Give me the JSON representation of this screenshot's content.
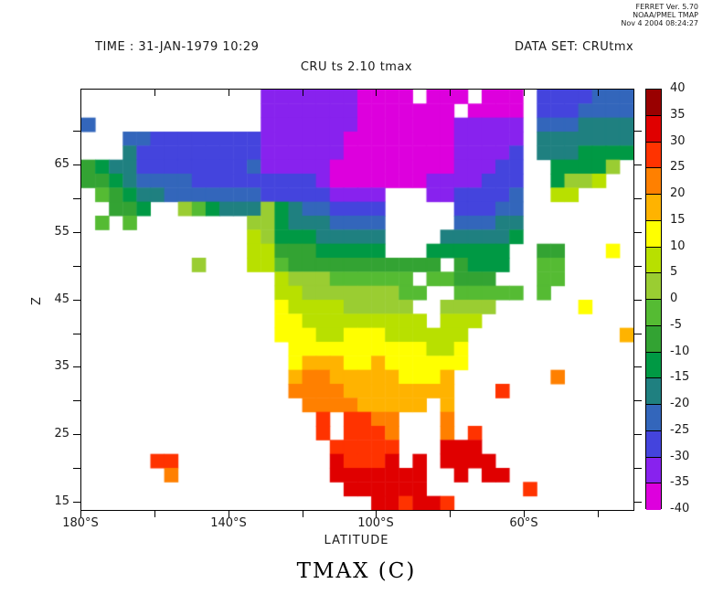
{
  "header": {
    "stamp_lines": [
      "FERRET Ver. 5.70",
      "NOAA/PMEL TMAP",
      "Nov  4 2004 08:24:27"
    ],
    "time_label": "TIME : 31-JAN-1979 10:29",
    "dataset_label": "DATA SET: CRUtmx"
  },
  "title": "CRU ts 2.10 tmax",
  "footer_label": "TMAX (C)",
  "axes": {
    "y_label": "Z",
    "x_label": "LATITUDE",
    "x_major": [
      {
        "label": "180°S",
        "value": 180
      },
      {
        "label": "140°S",
        "value": 140
      },
      {
        "label": "100°S",
        "value": 100
      },
      {
        "label": "60°S",
        "value": 60
      }
    ],
    "x_minor_values": [
      160,
      120,
      80,
      40
    ],
    "y_major": [
      {
        "label": "65",
        "value": 65
      },
      {
        "label": "55",
        "value": 55
      },
      {
        "label": "45",
        "value": 45
      },
      {
        "label": "35",
        "value": 35
      },
      {
        "label": "25",
        "value": 25
      },
      {
        "label": "15",
        "value": 15
      }
    ],
    "y_minor_values": [
      70,
      60,
      50,
      40,
      30,
      20
    ]
  },
  "chart_data": {
    "type": "heatmap",
    "title": "CRU ts 2.10 tmax",
    "variable": "TMAX (C)",
    "xlabel": "LATITUDE",
    "ylabel": "Z",
    "x_axis_deg_west_range": [
      180,
      30
    ],
    "y_axis_deg_north_range": [
      14,
      77
    ],
    "colorbar": {
      "levels": [
        -40,
        -35,
        -30,
        -25,
        -20,
        -15,
        -10,
        -5,
        0,
        5,
        10,
        15,
        20,
        25,
        30,
        35,
        40
      ],
      "colors": [
        "#dd00dd",
        "#8822ee",
        "#4444dd",
        "#3366bb",
        "#1f8080",
        "#009944",
        "#33a333",
        "#55bb33",
        "#9acd32",
        "#b8e000",
        "#ffff00",
        "#ffb300",
        "#ff8000",
        "#ff3300",
        "#e00000",
        "#990000"
      ]
    },
    "grid_note": "40x30 cells over plot area; char '.' = ocean/no data; hex digit = color bin index (0 = -40..-35 C ... F = 35..40 C); bin midpoint temp = -37.5 + 5*index",
    "grid_rows": [
      ".............11111110000.000.000.2222333",
      ".............11111110000000.0000.2223333",
      "3............1111111000000011111.3334444",
      "...33222222221111110000000011111.4444444",
      "...42222222221111110000000011112.4445555",
      "65442222222231111100000000011122..55558.",
      "66543333222222222100000001111222..5889..",
      ".765443333333222221111...1122223..99....",
      "..665..875444854332222.....22233........",
      ".7.7........8854443333.....33344........",
      "............9855544444....444445........",
      "............9966655555...555555..66...A.",
      "........8...99766666666666.6555..77.....",
      "..............9888777777.77666...77.....",
      "..............99888888877..77777.7......",
      "..............A999988888..8888......A...",
      "..............AA999999999.999...........",
      "..............AAA99AAA999999...........B",
      "...............AAAAAAAAAA99A............",
      "...............ABBBAABAAAAAA............",
      "...............BCCBBBBBAAAB.......C.....",
      "...............CCCCBBBBBBBB...D.........",
      "................CCCCBBBBB.B.............",
      ".................D.DDCC...C.............",
      ".................D.DDDC...C.D...........",
      "..................DDDDD...EEE...........",
      ".....DD...........EDDDE.E.EEEE..........",
      "......C...........EEEEEEE..E.EE.........",
      "...................EEEEEE.......D.......",
      ".....................EEDEED............."
    ]
  }
}
